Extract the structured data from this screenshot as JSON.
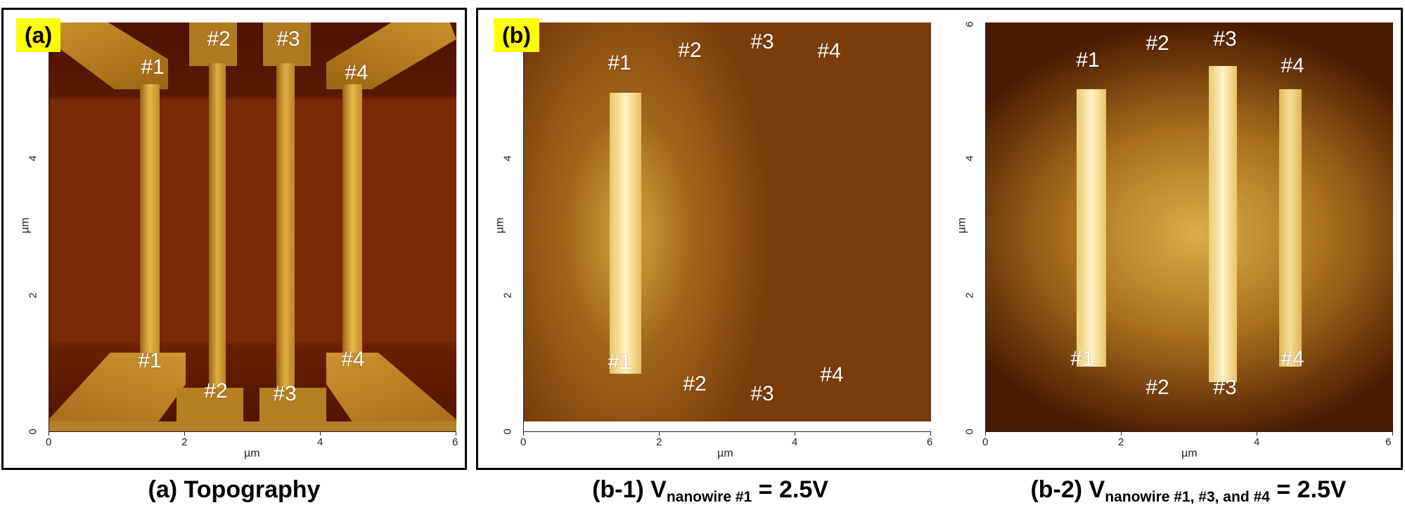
{
  "panel_a": {
    "tag": "(a)",
    "labels": {
      "top": [
        "#1",
        "#2",
        "#3",
        "#4"
      ],
      "bottom": [
        "#1",
        "#2",
        "#3",
        "#4"
      ]
    },
    "x_ticks": [
      "0",
      "2",
      "4",
      "6"
    ],
    "y_ticks": [
      "0",
      "2",
      "4"
    ],
    "x_unit": "µm",
    "y_unit": "µm",
    "caption": "(a) Topography"
  },
  "panel_b": {
    "tag": "(b)",
    "b1": {
      "labels": {
        "top": [
          "#1",
          "#2",
          "#3",
          "#4"
        ],
        "bottom": [
          "#1",
          "#2",
          "#3",
          "#4"
        ]
      },
      "x_ticks": [
        "0",
        "2",
        "4",
        "6"
      ],
      "y_ticks": [
        "0",
        "2",
        "4"
      ],
      "x_unit": "µm",
      "y_unit": "µm",
      "caption_prefix": "(b-1) V",
      "caption_sub": "nanowire #1",
      "caption_suffix": " = 2.5V"
    },
    "b2": {
      "labels": {
        "top": [
          "#1",
          "#2",
          "#3",
          "#4"
        ],
        "bottom": [
          "#1",
          "#2",
          "#3",
          "#4"
        ]
      },
      "x_ticks": [
        "0",
        "2",
        "4",
        "6"
      ],
      "y_ticks": [
        "0",
        "2",
        "4",
        "6"
      ],
      "x_unit": "µm",
      "y_unit": "µm",
      "caption_prefix": "(b-2) V",
      "caption_sub": "nanowire #1, #3, and #4",
      "caption_suffix": " = 2.5V"
    }
  },
  "colors": {
    "substrate": "#6b1e00",
    "wire": "#d9a53a",
    "tag_bg": "#ffff00",
    "label": "#ffffff"
  }
}
